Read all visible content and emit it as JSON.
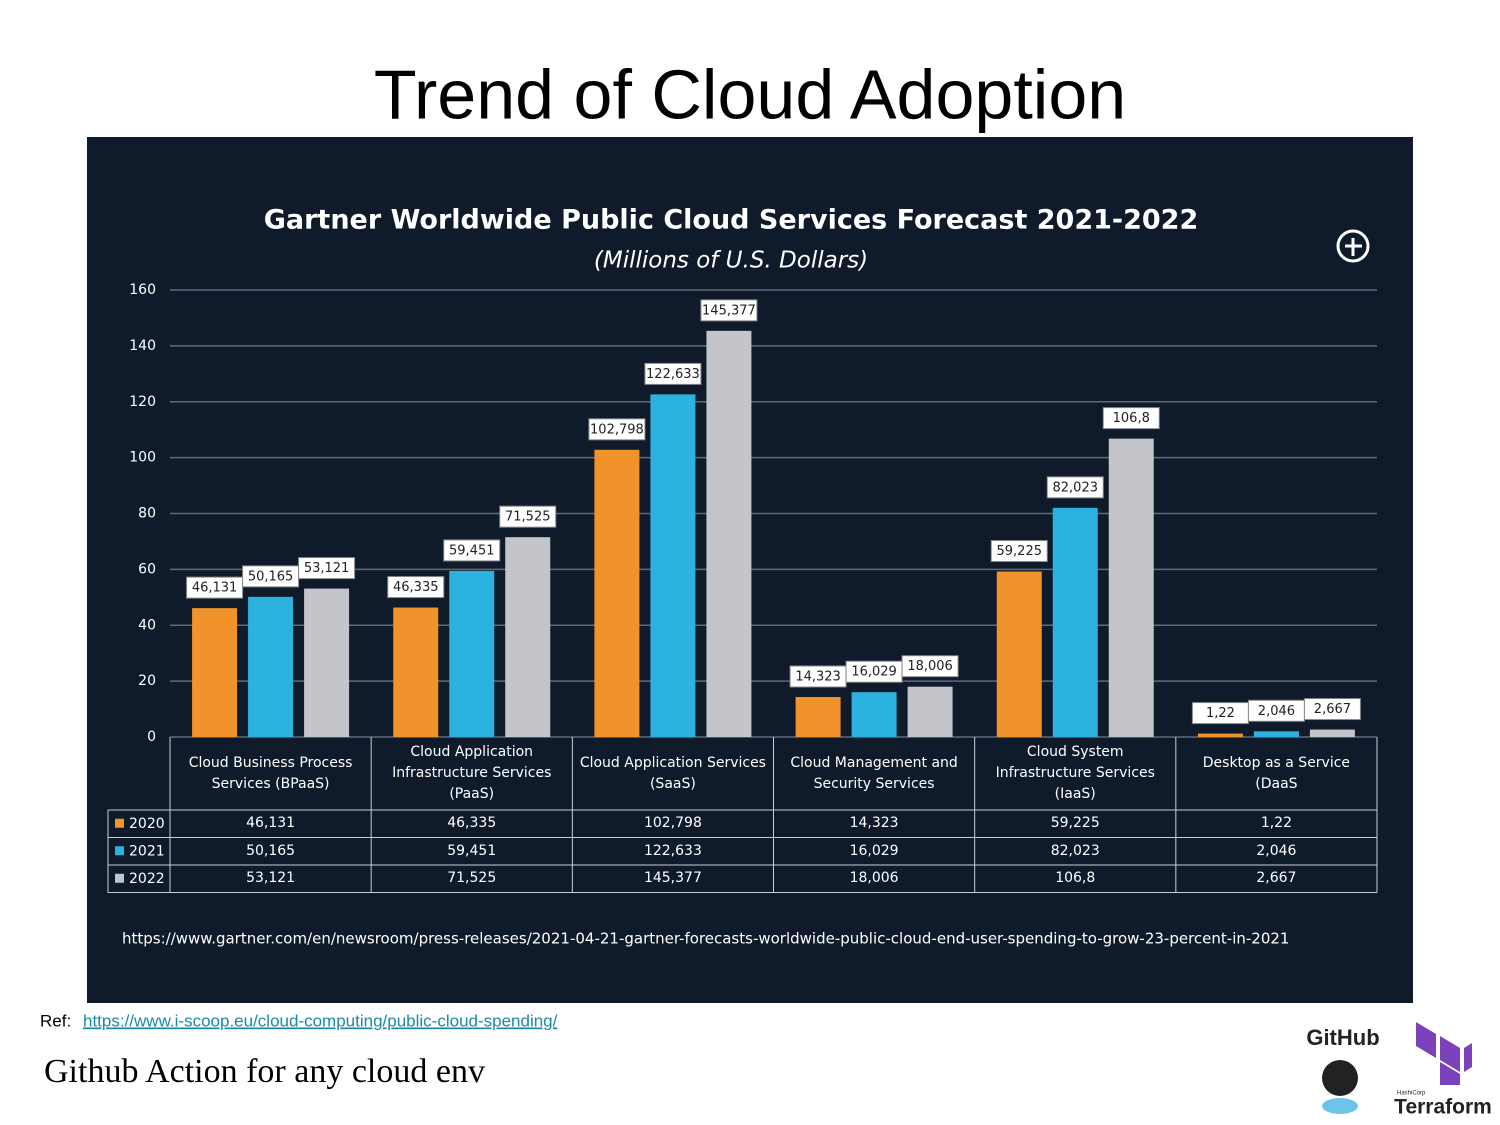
{
  "slide_title": "Trend of Cloud Adoption",
  "chart_data": {
    "type": "bar",
    "title": "Gartner Worldwide Public Cloud Services Forecast 2021-2022",
    "subtitle": "(Millions of U.S. Dollars)",
    "categories": [
      "Cloud Business Process Services (BPaaS)",
      "Cloud Application Infrastructure Services (PaaS)",
      "Cloud Application Services (SaaS)",
      "Cloud Management and Security Services",
      "Cloud System Infrastructure Services (IaaS)",
      "Desktop as a Service (DaaS"
    ],
    "series": [
      {
        "name": "2020",
        "color": "#f2922a",
        "values": [
          46.131,
          46.335,
          102.798,
          14.323,
          59.225,
          1.22
        ],
        "value_labels": [
          "46,131",
          "46,335",
          "102,798",
          "14,323",
          "59,225",
          "1,22"
        ]
      },
      {
        "name": "2021",
        "color": "#2bb2df",
        "values": [
          50.165,
          59.451,
          122.633,
          16.029,
          82.023,
          2.046
        ],
        "value_labels": [
          "50,165",
          "59,451",
          "122,633",
          "16,029",
          "82,023",
          "2,046"
        ]
      },
      {
        "name": "2022",
        "color": "#c4c5ca",
        "values": [
          53.121,
          71.525,
          145.377,
          18.006,
          106.8,
          2.667
        ],
        "value_labels": [
          "53,121",
          "71,525",
          "145,377",
          "18,006",
          "106,8",
          "2,667"
        ]
      }
    ],
    "ylim": [
      0,
      160
    ],
    "yticks": [
      0,
      20,
      40,
      60,
      80,
      100,
      120,
      140,
      160
    ],
    "grid": true,
    "source": "https://www.gartner.com/en/newsroom/press-releases/2021-04-21-gartner-forecasts-worldwide-public-cloud-end-user-spending-to-grow-23-percent-in-2021"
  },
  "ref_label": "Ref:",
  "ref_url": "https://www.i-scoop.eu/cloud-computing/public-cloud-spending/",
  "footer": "Github Action for any cloud env",
  "logos": {
    "github": "GitHub",
    "hashicorp": "HashiCorp",
    "terraform": "Terraform"
  }
}
